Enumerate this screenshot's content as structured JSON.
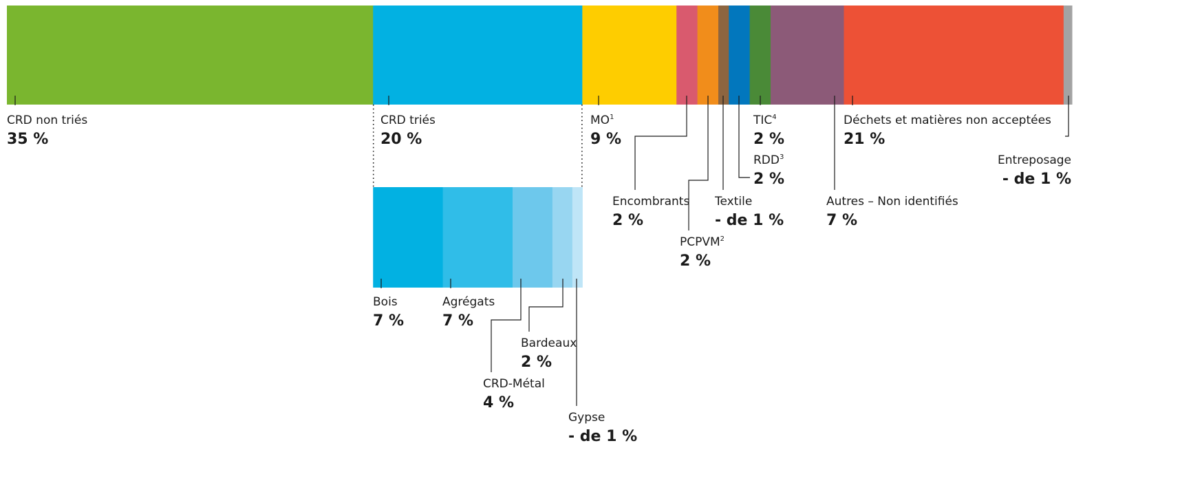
{
  "chart_data": [
    {
      "type": "bar",
      "orientation": "horizontal-stacked",
      "segments": [
        {
          "label": "CRD non triés",
          "sup": "",
          "value_label": "35 %",
          "value": 35,
          "color": "#7ab62f"
        },
        {
          "label": "CRD triés",
          "sup": "",
          "value_label": "20 %",
          "value": 20,
          "color": "#02b1e2"
        },
        {
          "label": "MO",
          "sup": "1",
          "value_label": "9 %",
          "value": 9,
          "color": "#fecd00"
        },
        {
          "label": "Encombrants",
          "sup": "",
          "value_label": "2 %",
          "value": 2,
          "color": "#d95a6e"
        },
        {
          "label": "PCPVM",
          "sup": "2",
          "value_label": "2 %",
          "value": 2,
          "color": "#f18d1b"
        },
        {
          "label": "Textile",
          "sup": "",
          "value_label": "- de 1 %",
          "value": 1,
          "color": "#8d6540"
        },
        {
          "label": "RDD",
          "sup": "3",
          "value_label": "2 %",
          "value": 2,
          "color": "#0277bd"
        },
        {
          "label": "TIC",
          "sup": "4",
          "value_label": "2 %",
          "value": 2,
          "color": "#4a8a37"
        },
        {
          "label": "Autres – Non identifiés",
          "sup": "",
          "value_label": "7 %",
          "value": 7,
          "color": "#8c5a78"
        },
        {
          "label": "Déchets et matières non acceptées",
          "sup": "",
          "value_label": "21 %",
          "value": 21,
          "color": "#ed5136"
        },
        {
          "label": "Entreposage",
          "sup": "",
          "value_label": "- de 1 %",
          "value": 0.8,
          "color": "#a3a3a3"
        }
      ]
    },
    {
      "type": "bar",
      "orientation": "horizontal-stacked",
      "parent": "CRD triés",
      "segments": [
        {
          "label": "Bois",
          "value_label": "7 %",
          "value": 7,
          "color": "#02b1e2"
        },
        {
          "label": "Agrégats",
          "value_label": "7 %",
          "value": 7,
          "color": "#30bde8"
        },
        {
          "label": "CRD-Métal",
          "value_label": "4 %",
          "value": 4,
          "color": "#6dc8ec"
        },
        {
          "label": "Bardeaux",
          "value_label": "2 %",
          "value": 2,
          "color": "#98d6f1"
        },
        {
          "label": "Gypse",
          "value_label": "- de 1 %",
          "value": 1,
          "color": "#bfe5f7"
        }
      ]
    }
  ]
}
